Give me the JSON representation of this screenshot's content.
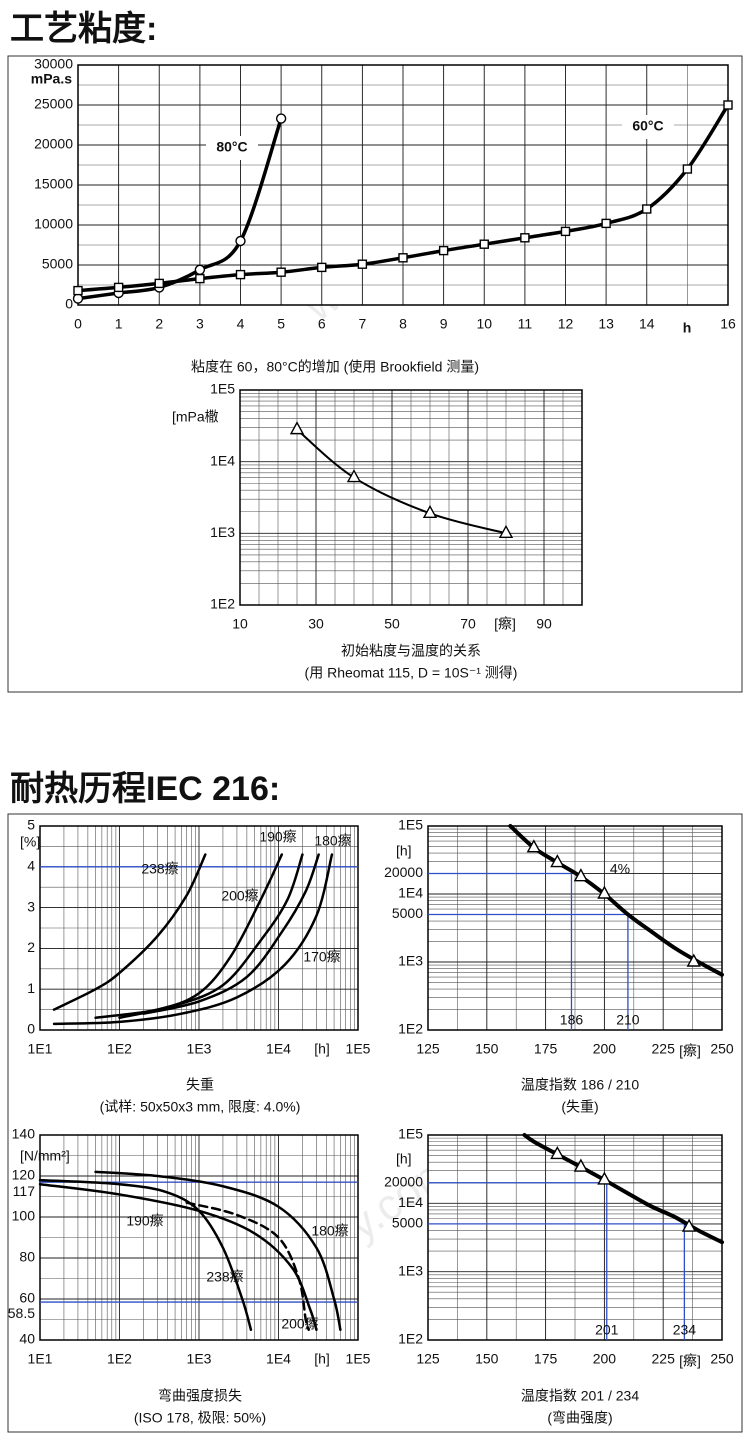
{
  "sections": [
    {
      "title": "工艺粘度:"
    },
    {
      "title": "耐热历程IEC 216:"
    }
  ],
  "watermark": "www.ehsy.com",
  "chart_data": [
    {
      "type": "line",
      "caption": [
        "粘度在 60，80°C的增加 (使用 Brookfield 测量)"
      ],
      "ylabel": "mPa.s",
      "xlabel": "h",
      "xlim": [
        0,
        16
      ],
      "xticks": [
        0,
        1,
        2,
        3,
        4,
        5,
        6,
        7,
        8,
        9,
        10,
        11,
        12,
        13,
        14,
        16
      ],
      "ylim": [
        0,
        30000
      ],
      "yticks": [
        0,
        5000,
        10000,
        15000,
        20000,
        25000,
        30000
      ],
      "grid": true,
      "series": [
        {
          "name": "80°C",
          "color": "#000000",
          "marker": "circle",
          "x": [
            0,
            1,
            2,
            3,
            4,
            5
          ],
          "values": [
            800,
            1500,
            2200,
            4400,
            8000,
            23300
          ]
        },
        {
          "name": "60°C",
          "color": "#000000",
          "marker": "square",
          "x": [
            0,
            1,
            2,
            3,
            4,
            5,
            6,
            7,
            8,
            9,
            10,
            11,
            12,
            13,
            14,
            15,
            16
          ],
          "values": [
            1800,
            2200,
            2700,
            3300,
            3800,
            4100,
            4700,
            5100,
            5900,
            6800,
            7600,
            8400,
            9200,
            10200,
            12000,
            17000,
            25000
          ]
        }
      ]
    },
    {
      "type": "line",
      "caption": [
        "初始粘度与温度的关系",
        "(用 Rheomat 115, D = 10S⁻¹ 测得)"
      ],
      "ylabel": "[mPa橵",
      "xlabel": "[瘵]",
      "xlim": [
        10,
        100
      ],
      "xticks": [
        10,
        30,
        50,
        70,
        90
      ],
      "ylog": true,
      "ylim": [
        100,
        100000
      ],
      "yticks": [
        {
          "value": 100,
          "label": "1E2"
        },
        {
          "value": 1000,
          "label": "1E3"
        },
        {
          "value": 10000,
          "label": "1E4"
        },
        {
          "value": 100000,
          "label": "1E5"
        }
      ],
      "grid": true,
      "series": [
        {
          "color": "#000000",
          "marker": "triangle",
          "x": [
            25,
            40,
            60,
            80
          ],
          "values": [
            28000,
            6000,
            1900,
            1000
          ]
        }
      ]
    },
    {
      "type": "line",
      "caption": [
        "失重",
        "(试样: 50x50x3 mm, 限度: 4.0%)"
      ],
      "ylabel": "[%]",
      "xlabel": "[h]",
      "xlog": true,
      "xlim": [
        10,
        100000
      ],
      "xticks": [
        {
          "value": 10,
          "label": "1E1"
        },
        {
          "value": 100,
          "label": "1E2"
        },
        {
          "value": 1000,
          "label": "1E3"
        },
        {
          "value": 10000,
          "label": "1E4"
        },
        {
          "value": 100000,
          "label": "1E5"
        }
      ],
      "ylim": [
        0,
        5
      ],
      "yticks": [
        0,
        1,
        2,
        3,
        4,
        5
      ],
      "grid": true,
      "reference_lines": [
        {
          "y": 4
        }
      ],
      "series": [
        {
          "name": "238瘵",
          "color": "#000000",
          "x": [
            15,
            50,
            100,
            300,
            700,
            1200
          ],
          "values": [
            0.5,
            1.0,
            1.4,
            2.3,
            3.3,
            4.3
          ]
        },
        {
          "name": "200瘵",
          "color": "#000000",
          "x": [
            50,
            300,
            1000,
            2500,
            6000,
            11000
          ],
          "values": [
            0.3,
            0.5,
            0.9,
            1.8,
            3.2,
            4.3
          ]
        },
        {
          "name": "190瘵",
          "color": "#000000",
          "x": [
            100,
            500,
            2000,
            6000,
            13000,
            20000
          ],
          "values": [
            0.3,
            0.6,
            1.1,
            2.2,
            3.2,
            4.3
          ]
        },
        {
          "name": "180瘵",
          "color": "#000000",
          "x": [
            200,
            1000,
            4000,
            11000,
            22000,
            32000
          ],
          "values": [
            0.4,
            0.7,
            1.3,
            2.4,
            3.4,
            4.3
          ]
        },
        {
          "name": "170瘵",
          "color": "#000000",
          "x": [
            15,
            100,
            600,
            3000,
            12000,
            30000,
            47000
          ],
          "values": [
            0.15,
            0.2,
            0.4,
            0.8,
            1.6,
            2.8,
            4.3
          ]
        }
      ]
    },
    {
      "type": "line",
      "caption": [
        "温度指数 186 / 210",
        "(失重)"
      ],
      "ylabel": "[h]",
      "xlabel": "[瘵]",
      "xlim": [
        125,
        250
      ],
      "xticks": [
        125,
        150,
        175,
        200,
        225,
        250
      ],
      "ylog": true,
      "ylim": [
        100,
        100000
      ],
      "yticks": [
        {
          "value": 100,
          "label": "1E2"
        },
        {
          "value": 1000,
          "label": "1E3"
        },
        5000,
        {
          "value": 10000,
          "label": "1E4"
        },
        20000,
        {
          "value": 100000,
          "label": "1E5"
        }
      ],
      "grid": true,
      "reference_lines": [
        {
          "x": 186,
          "y": 20000
        },
        {
          "x": 210,
          "y": 5000
        }
      ],
      "annotations": [
        "4%"
      ],
      "series": [
        {
          "color": "#000000",
          "x": [
            160,
            170,
            180,
            190,
            200,
            210,
            220,
            230,
            240,
            250
          ],
          "values": [
            100000,
            48000,
            29000,
            18000,
            10000,
            5000,
            2800,
            1600,
            1000,
            650
          ]
        },
        {
          "color": "#000000",
          "marker": "triangle",
          "line": false,
          "x": [
            170,
            180,
            190,
            200,
            238
          ],
          "values": [
            48000,
            29000,
            18000,
            10000,
            1000
          ]
        }
      ]
    },
    {
      "type": "line",
      "caption": [
        "弯曲强度损失",
        "(ISO 178, 极限: 50%)"
      ],
      "ylabel": "[N/mm²]",
      "xlabel": "[h]",
      "xlog": true,
      "xlim": [
        10,
        100000
      ],
      "xticks": [
        {
          "value": 10,
          "label": "1E1"
        },
        {
          "value": 100,
          "label": "1E2"
        },
        {
          "value": 1000,
          "label": "1E3"
        },
        {
          "value": 10000,
          "label": "1E4"
        },
        {
          "value": 100000,
          "label": "1E5"
        }
      ],
      "ylim": [
        40,
        140
      ],
      "yticks": [
        40,
        58.5,
        60,
        80,
        100,
        117,
        120,
        140
      ],
      "grid": true,
      "reference_lines": [
        {
          "y": 117
        },
        {
          "y": 58.5
        }
      ],
      "series": [
        {
          "name": "238瘵",
          "color": "#000000",
          "x": [
            10,
            100,
            400,
            1000,
            2000,
            3500,
            4500
          ],
          "values": [
            118,
            116,
            112,
            103,
            85,
            60,
            45
          ]
        },
        {
          "name": "190瘵",
          "color": "#000000",
          "x": [
            10,
            100,
            1000,
            5000,
            15000,
            25000,
            30000
          ],
          "values": [
            116,
            111,
            103,
            92,
            75,
            55,
            45
          ]
        },
        {
          "name": "200瘵",
          "color": "#000000",
          "style": "dashed",
          "x": [
            700,
            3000,
            10000,
            18000,
            22000,
            24000
          ],
          "values": [
            107,
            101,
            90,
            70,
            50,
            45
          ]
        },
        {
          "name": "180瘵",
          "color": "#000000",
          "x": [
            50,
            300,
            2000,
            10000,
            30000,
            50000,
            60000
          ],
          "values": [
            122,
            120,
            115,
            105,
            85,
            60,
            45
          ]
        }
      ]
    },
    {
      "type": "line",
      "caption": [
        "温度指数 201 / 234",
        "(弯曲强度)"
      ],
      "ylabel": "[h]",
      "xlabel": "[瘵]",
      "xlim": [
        125,
        250
      ],
      "xticks": [
        125,
        150,
        175,
        200,
        225,
        250
      ],
      "ylog": true,
      "ylim": [
        100,
        100000
      ],
      "yticks": [
        {
          "value": 100,
          "label": "1E2"
        },
        {
          "value": 1000,
          "label": "1E3"
        },
        5000,
        {
          "value": 10000,
          "label": "1E4"
        },
        20000,
        {
          "value": 100000,
          "label": "1E5"
        }
      ],
      "grid": true,
      "reference_lines": [
        {
          "x": 201,
          "y": 20000
        },
        {
          "x": 234,
          "y": 5000
        }
      ],
      "series": [
        {
          "color": "#000000",
          "x": [
            166,
            170,
            180,
            190,
            200,
            210,
            220,
            230,
            240,
            250
          ],
          "values": [
            100000,
            80000,
            52000,
            34000,
            22000,
            14000,
            9000,
            6300,
            4000,
            2700
          ]
        },
        {
          "color": "#000000",
          "marker": "triangle",
          "line": false,
          "x": [
            180,
            190,
            200,
            236
          ],
          "values": [
            52000,
            34000,
            22000,
            4500
          ]
        }
      ]
    }
  ]
}
